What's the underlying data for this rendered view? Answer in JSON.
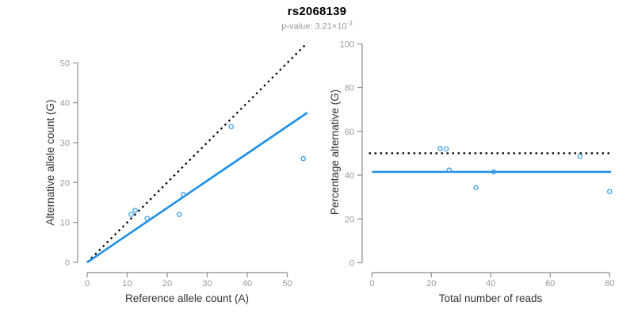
{
  "header": {
    "title": "rs2068139",
    "subtitle_prefix": "p-value: 3.21×10",
    "subtitle_exponent": "-3"
  },
  "colors": {
    "accent_blue": "#1E8FE8",
    "point_blue": "#3B9CE8",
    "dotted_black": "#000000",
    "axis_gray": "#8c8c8c",
    "tick_label_gray": "#9a9a9a",
    "axis_title_dark": "#333333",
    "subtitle_gray": "#9a9a9a"
  },
  "chart_data": [
    {
      "type": "scatter",
      "name": "alternative-vs-reference-allele-count",
      "xlabel": "Reference allele count (A)",
      "ylabel": "Alternative allele count (G)",
      "xticks": [
        0,
        10,
        20,
        30,
        40,
        50
      ],
      "yticks": [
        0,
        10,
        20,
        30,
        40,
        50
      ],
      "xlim": [
        0,
        55
      ],
      "ylim": [
        0,
        55
      ],
      "grid": false,
      "points": [
        [
          11,
          12
        ],
        [
          12,
          13
        ],
        [
          15,
          11
        ],
        [
          23,
          12
        ],
        [
          24,
          17
        ],
        [
          36,
          34
        ],
        [
          54,
          26
        ]
      ],
      "lines": [
        {
          "name": "identity-line",
          "style": "dotted",
          "color": "black",
          "from": [
            0,
            0
          ],
          "to": [
            55,
            55
          ]
        },
        {
          "name": "fit-line",
          "style": "solid",
          "color": "blue",
          "from": [
            0,
            0
          ],
          "to": [
            55,
            37.5
          ]
        }
      ]
    },
    {
      "type": "scatter",
      "name": "percentage-alternative-vs-total-reads",
      "xlabel": "Total number of reads",
      "ylabel": "Percentage alternative (G)",
      "xticks": [
        0,
        20,
        40,
        60,
        80
      ],
      "yticks": [
        0,
        20,
        40,
        60,
        80,
        100
      ],
      "xlim": [
        0,
        81
      ],
      "ylim": [
        0,
        100
      ],
      "grid": false,
      "points": [
        [
          23,
          52.2
        ],
        [
          25,
          52
        ],
        [
          26,
          42.3
        ],
        [
          35,
          34.3
        ],
        [
          41,
          41.5
        ],
        [
          70,
          48.6
        ],
        [
          80,
          32.5
        ]
      ],
      "lines": [
        {
          "name": "expected-50-percent-line",
          "style": "dotted",
          "color": "black",
          "from": [
            -1,
            50
          ],
          "to": [
            80,
            50
          ]
        },
        {
          "name": "mean-percentage-line",
          "style": "solid",
          "color": "blue",
          "from": [
            0,
            41.5
          ],
          "to": [
            80.5,
            41.5
          ]
        }
      ]
    }
  ]
}
